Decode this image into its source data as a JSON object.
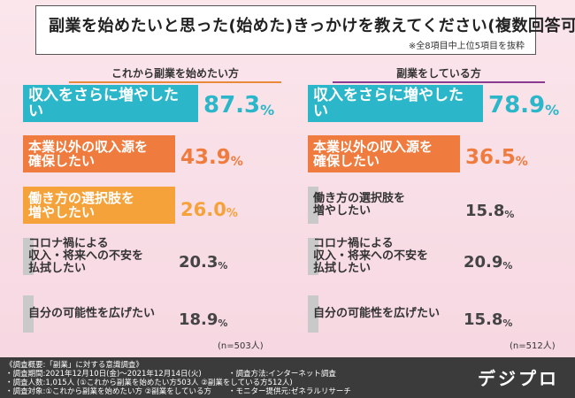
{
  "title": "副業を始めたいと思った(始めた)きっかけを教えてください(複数回答可)",
  "note": "※全8項目中上位5項目を抜粋",
  "colors": {
    "teal": "#2bb7c9",
    "orange": "#f07b3f",
    "yellow_orange": "#f5a23a",
    "gray": "#c9c9c9",
    "left_line": "#e98a3a",
    "right_line": "#8a3b8f"
  },
  "chart_data": [
    {
      "type": "bar",
      "title": "これから副業を始めたい方",
      "categories": [
        "収入をさらに増やしたい",
        "本業以外の収入源を\n確保したい",
        "働き方の選択肢を\n増やしたい",
        "コロナ禍による\n収入・将来への不安を\n払拭したい",
        "自分の可能性を広げたい"
      ],
      "values": [
        87.3,
        43.9,
        26.0,
        20.3,
        18.9
      ],
      "value_labels": [
        "87.3",
        "43.9",
        "26.0",
        "20.3",
        "18.9"
      ],
      "unit": "%",
      "n_note": "(n=503人)"
    },
    {
      "type": "bar",
      "title": "副業をしている方",
      "categories": [
        "収入をさらに増やしたい",
        "本業以外の収入源を\n確保したい",
        "働き方の選択肢を\n増やしたい",
        "コロナ禍による\n収入・将来への不安を\n払拭したい",
        "自分の可能性を広げたい"
      ],
      "values": [
        78.9,
        36.5,
        15.8,
        20.9,
        15.8
      ],
      "value_labels": [
        "78.9",
        "36.5",
        "15.8",
        "20.9",
        "15.8"
      ],
      "unit": "%",
      "n_note": "(n=512人)"
    }
  ],
  "footer": {
    "line1": "《調査概要:「副業」に対する意識調査》",
    "line2": "・調査期間:2021年12月10日(金)〜2021年12月14日(火)",
    "line2b": "・調査方法:インターネット調査",
    "line3": "・調査人数:1,015人 (①これから副業を始めたい方503人 ②副業をしている方512人)",
    "line4": "・調査対象:①これから副業を始めたい方 ②副業をしている方",
    "line4b": "・モニター提供元:ゼネラルリサーチ",
    "logo": "デジプロ"
  }
}
